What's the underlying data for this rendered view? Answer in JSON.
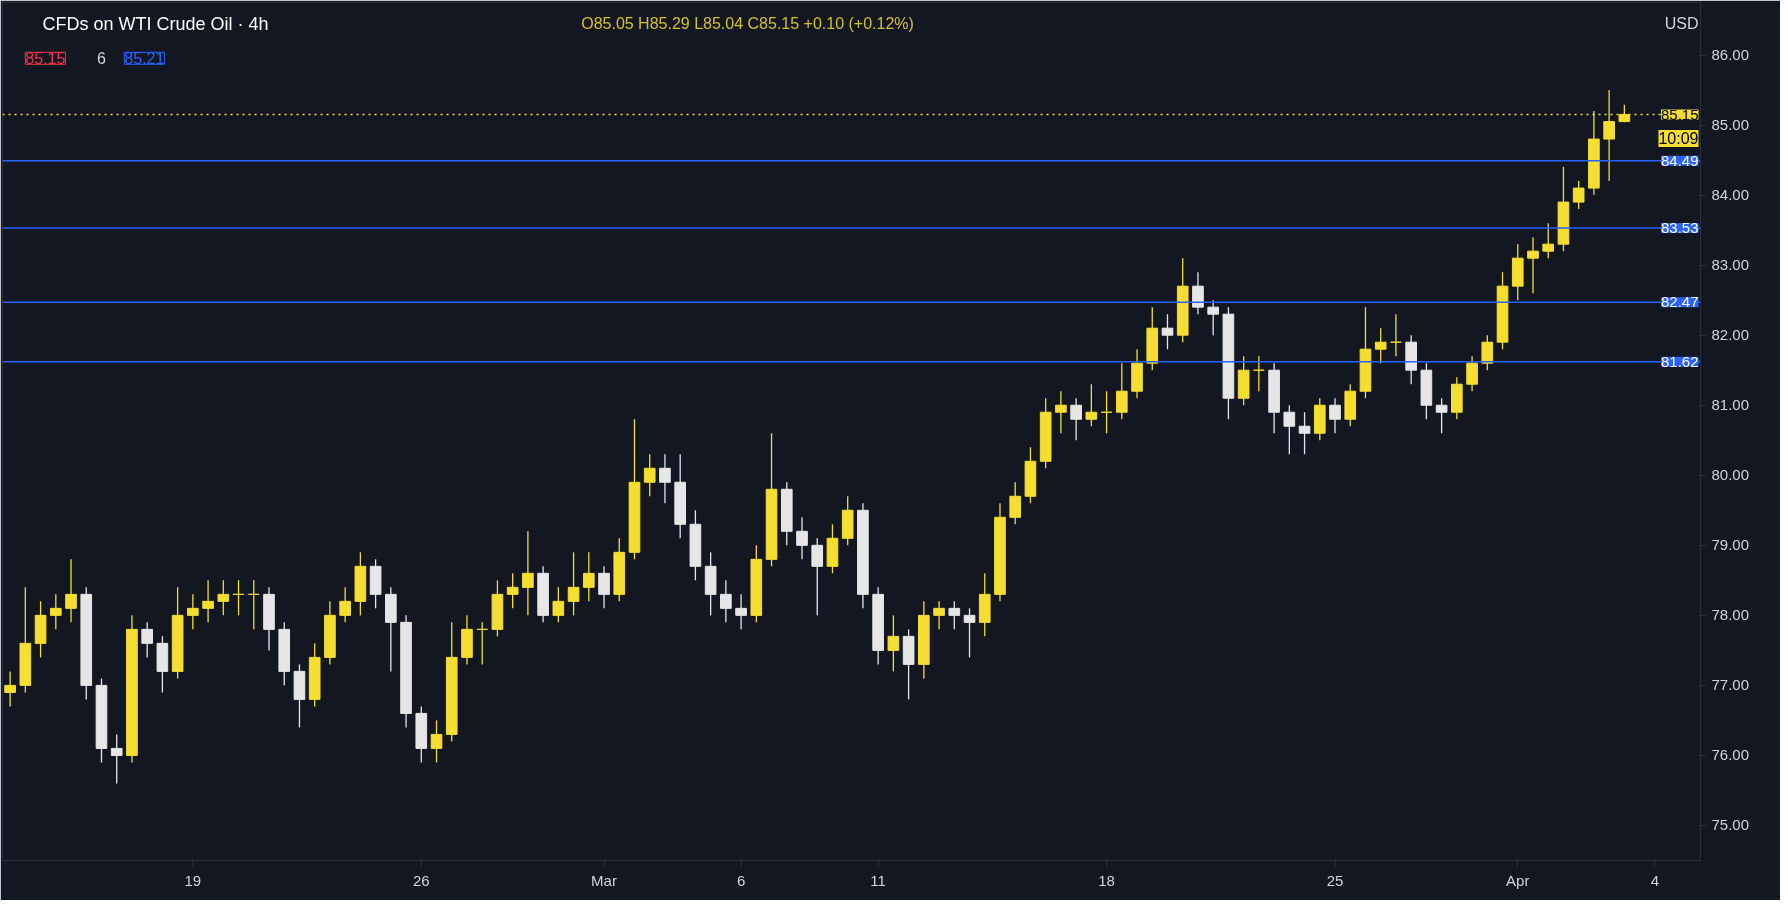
{
  "chart_data": {
    "type": "candlestick",
    "title": "CFDs on WTI Crude Oil · 4h",
    "annotations": [
      "O85.05 H85.29 L85.04 C85.15 +0.10 (+0.12%)",
      "85.15",
      "6",
      "85.21",
      "USD",
      "10:09"
    ],
    "categories": [
      null,
      null,
      null,
      null,
      null,
      null,
      null,
      null,
      null,
      null,
      null,
      null,
      "19",
      null,
      null,
      null,
      null,
      null,
      null,
      null,
      null,
      null,
      null,
      null,
      null,
      null,
      null,
      "26",
      null,
      null,
      null,
      null,
      null,
      null,
      null,
      null,
      null,
      null,
      null,
      "Mar",
      null,
      null,
      null,
      null,
      null,
      null,
      null,
      null,
      "6",
      null,
      null,
      null,
      null,
      null,
      null,
      null,
      null,
      "11",
      null,
      null,
      null,
      null,
      null,
      null,
      null,
      null,
      null,
      null,
      null,
      null,
      null,
      null,
      "18",
      null,
      null,
      null,
      null,
      null,
      null,
      null,
      null,
      null,
      null,
      null,
      null,
      null,
      null,
      "25",
      null,
      null,
      null,
      null,
      null,
      null,
      null,
      null,
      null,
      null,
      null,
      "Apr",
      null,
      null,
      null,
      null,
      null,
      null,
      null,
      null,
      "4"
    ],
    "ohlc": [
      [
        76.9,
        77.2,
        76.7,
        77.0
      ],
      [
        77.0,
        78.4,
        76.9,
        77.6
      ],
      [
        77.6,
        78.2,
        77.4,
        78.0
      ],
      [
        78.0,
        78.3,
        77.8,
        78.1
      ],
      [
        78.1,
        78.8,
        77.9,
        78.3
      ],
      [
        78.3,
        78.4,
        76.8,
        77.0
      ],
      [
        77.0,
        77.1,
        75.9,
        76.1
      ],
      [
        76.1,
        76.3,
        75.6,
        76.0
      ],
      [
        76.0,
        78.0,
        75.9,
        77.8
      ],
      [
        77.8,
        77.9,
        77.4,
        77.6
      ],
      [
        77.6,
        77.7,
        76.9,
        77.2
      ],
      [
        77.2,
        78.4,
        77.1,
        78.0
      ],
      [
        78.0,
        78.3,
        77.8,
        78.1
      ],
      [
        78.1,
        78.5,
        77.9,
        78.2
      ],
      [
        78.2,
        78.5,
        78.0,
        78.3
      ],
      [
        78.3,
        78.5,
        78.0,
        78.3
      ],
      [
        78.3,
        78.5,
        77.8,
        78.3
      ],
      [
        78.3,
        78.4,
        77.5,
        77.8
      ],
      [
        77.8,
        77.9,
        77.0,
        77.2
      ],
      [
        77.2,
        77.3,
        76.4,
        76.8
      ],
      [
        76.8,
        77.6,
        76.7,
        77.4
      ],
      [
        77.4,
        78.2,
        77.3,
        78.0
      ],
      [
        78.0,
        78.4,
        77.9,
        78.2
      ],
      [
        78.2,
        78.9,
        78.0,
        78.7
      ],
      [
        78.7,
        78.8,
        78.1,
        78.3
      ],
      [
        78.3,
        78.4,
        77.2,
        77.9
      ],
      [
        77.9,
        78.0,
        76.4,
        76.6
      ],
      [
        76.6,
        76.7,
        75.9,
        76.1
      ],
      [
        76.1,
        76.5,
        75.9,
        76.3
      ],
      [
        76.3,
        77.9,
        76.2,
        77.4
      ],
      [
        77.4,
        78.0,
        77.3,
        77.8
      ],
      [
        77.8,
        77.9,
        77.3,
        77.8
      ],
      [
        77.8,
        78.5,
        77.7,
        78.3
      ],
      [
        78.3,
        78.6,
        78.1,
        78.4
      ],
      [
        78.4,
        79.2,
        78.0,
        78.6
      ],
      [
        78.6,
        78.7,
        77.9,
        78.0
      ],
      [
        78.0,
        78.4,
        77.9,
        78.2
      ],
      [
        78.2,
        78.9,
        78.0,
        78.4
      ],
      [
        78.4,
        78.9,
        78.2,
        78.6
      ],
      [
        78.6,
        78.7,
        78.1,
        78.3
      ],
      [
        78.3,
        79.1,
        78.2,
        78.9
      ],
      [
        78.9,
        80.8,
        78.8,
        79.9
      ],
      [
        79.9,
        80.3,
        79.7,
        80.1
      ],
      [
        80.1,
        80.3,
        79.6,
        79.9
      ],
      [
        79.9,
        80.3,
        79.1,
        79.3
      ],
      [
        79.3,
        79.5,
        78.5,
        78.7
      ],
      [
        78.7,
        78.9,
        78.0,
        78.3
      ],
      [
        78.3,
        78.5,
        77.9,
        78.1
      ],
      [
        78.1,
        78.3,
        77.8,
        78.0
      ],
      [
        78.0,
        79.0,
        77.9,
        78.8
      ],
      [
        78.8,
        80.6,
        78.7,
        79.8
      ],
      [
        79.8,
        79.9,
        79.0,
        79.2
      ],
      [
        79.2,
        79.4,
        78.8,
        79.0
      ],
      [
        79.0,
        79.1,
        78.0,
        78.7
      ],
      [
        78.7,
        79.3,
        78.6,
        79.1
      ],
      [
        79.1,
        79.7,
        79.0,
        79.5
      ],
      [
        79.5,
        79.6,
        78.1,
        78.3
      ],
      [
        78.3,
        78.4,
        77.3,
        77.5
      ],
      [
        77.5,
        78.0,
        77.2,
        77.7
      ],
      [
        77.7,
        77.8,
        76.8,
        77.3
      ],
      [
        77.3,
        78.2,
        77.1,
        78.0
      ],
      [
        78.0,
        78.2,
        77.8,
        78.1
      ],
      [
        78.1,
        78.2,
        77.8,
        78.0
      ],
      [
        78.0,
        78.1,
        77.4,
        77.9
      ],
      [
        77.9,
        78.6,
        77.7,
        78.3
      ],
      [
        78.3,
        79.6,
        78.2,
        79.4
      ],
      [
        79.4,
        79.9,
        79.3,
        79.7
      ],
      [
        79.7,
        80.4,
        79.6,
        80.2
      ],
      [
        80.2,
        81.1,
        80.1,
        80.9
      ],
      [
        80.9,
        81.2,
        80.6,
        81.0
      ],
      [
        81.0,
        81.1,
        80.5,
        80.8
      ],
      [
        80.8,
        81.3,
        80.7,
        80.9
      ],
      [
        80.9,
        81.2,
        80.6,
        80.9
      ],
      [
        80.9,
        81.6,
        80.8,
        81.2
      ],
      [
        81.2,
        81.8,
        81.1,
        81.6
      ],
      [
        81.6,
        82.4,
        81.5,
        82.1
      ],
      [
        82.1,
        82.3,
        81.8,
        82.0
      ],
      [
        82.0,
        83.1,
        81.9,
        82.7
      ],
      [
        82.7,
        82.9,
        82.3,
        82.4
      ],
      [
        82.4,
        82.5,
        82.0,
        82.3
      ],
      [
        82.3,
        82.4,
        80.8,
        81.1
      ],
      [
        81.1,
        81.7,
        81.0,
        81.5
      ],
      [
        81.5,
        81.7,
        81.2,
        81.5
      ],
      [
        81.5,
        81.6,
        80.6,
        80.9
      ],
      [
        80.9,
        81.0,
        80.3,
        80.7
      ],
      [
        80.7,
        80.9,
        80.3,
        80.6
      ],
      [
        80.6,
        81.1,
        80.5,
        81.0
      ],
      [
        81.0,
        81.1,
        80.6,
        80.8
      ],
      [
        80.8,
        81.3,
        80.7,
        81.2
      ],
      [
        81.2,
        82.4,
        81.1,
        81.8
      ],
      [
        81.8,
        82.1,
        81.6,
        81.9
      ],
      [
        81.9,
        82.3,
        81.7,
        81.9
      ],
      [
        81.9,
        82.0,
        81.3,
        81.5
      ],
      [
        81.5,
        81.6,
        80.8,
        81.0
      ],
      [
        81.0,
        81.1,
        80.6,
        80.9
      ],
      [
        80.9,
        81.4,
        80.8,
        81.3
      ],
      [
        81.3,
        81.7,
        81.2,
        81.6
      ],
      [
        81.6,
        82.0,
        81.5,
        81.9
      ],
      [
        81.9,
        82.9,
        81.8,
        82.7
      ],
      [
        82.7,
        83.3,
        82.5,
        83.1
      ],
      [
        83.1,
        83.4,
        82.6,
        83.2
      ],
      [
        83.2,
        83.6,
        83.1,
        83.3
      ],
      [
        83.3,
        84.4,
        83.2,
        83.9
      ],
      [
        83.9,
        84.2,
        83.8,
        84.1
      ],
      [
        84.1,
        85.2,
        84.0,
        84.8
      ],
      [
        84.8,
        85.5,
        84.2,
        85.05
      ],
      [
        85.05,
        85.29,
        85.04,
        85.15
      ],
      null,
      null
    ],
    "colors": [
      "#f5dd32",
      "#f5dd32",
      "#f5dd32",
      "#f5dd32",
      "#f5dd32",
      "#e6e6e6",
      "#e6e6e6",
      "#e6e6e6",
      "#f5dd32",
      "#e6e6e6",
      "#e6e6e6",
      "#f5dd32",
      "#f5dd32",
      "#f5dd32",
      "#f5dd32",
      "#f5dd32",
      "#f5dd32",
      "#e6e6e6",
      "#e6e6e6",
      "#e6e6e6",
      "#f5dd32",
      "#f5dd32",
      "#f5dd32",
      "#f5dd32",
      "#e6e6e6",
      "#e6e6e6",
      "#e6e6e6",
      "#e6e6e6",
      "#f5dd32",
      "#f5dd32",
      "#f5dd32",
      "#f5dd32",
      "#f5dd32",
      "#f5dd32",
      "#f5dd32",
      "#e6e6e6",
      "#f5dd32",
      "#f5dd32",
      "#f5dd32",
      "#e6e6e6",
      "#f5dd32",
      "#f5dd32",
      "#f5dd32",
      "#e6e6e6",
      "#e6e6e6",
      "#e6e6e6",
      "#e6e6e6",
      "#e6e6e6",
      "#e6e6e6",
      "#f5dd32",
      "#f5dd32",
      "#e6e6e6",
      "#e6e6e6",
      "#e6e6e6",
      "#f5dd32",
      "#f5dd32",
      "#e6e6e6",
      "#e6e6e6",
      "#f5dd32",
      "#e6e6e6",
      "#f5dd32",
      "#f5dd32",
      "#e6e6e6",
      "#e6e6e6",
      "#f5dd32",
      "#f5dd32",
      "#f5dd32",
      "#f5dd32",
      "#f5dd32",
      "#f5dd32",
      "#e6e6e6",
      "#f5dd32",
      "#f5dd32",
      "#f5dd32",
      "#f5dd32",
      "#f5dd32",
      "#e6e6e6",
      "#f5dd32",
      "#e6e6e6",
      "#e6e6e6",
      "#e6e6e6",
      "#f5dd32",
      "#f5dd32",
      "#e6e6e6",
      "#e6e6e6",
      "#e6e6e6",
      "#f5dd32",
      "#e6e6e6",
      "#f5dd32",
      "#f5dd32",
      "#f5dd32",
      "#f5dd32",
      "#e6e6e6",
      "#e6e6e6",
      "#e6e6e6",
      "#f5dd32",
      "#f5dd32",
      "#f5dd32",
      "#f5dd32",
      "#f5dd32",
      "#f5dd32",
      "#f5dd32",
      "#f5dd32",
      "#f5dd32",
      "#f5dd32",
      "#f5dd32",
      "#f5dd32",
      null,
      null
    ],
    "ylim": [
      74.5,
      86.75
    ],
    "yticks": [
      {
        "value": 75,
        "label": "75.00"
      },
      {
        "value": 76,
        "label": "76.00"
      },
      {
        "value": 77,
        "label": "77.00"
      },
      {
        "value": 78,
        "label": "78.00"
      },
      {
        "value": 79,
        "label": "79.00"
      },
      {
        "value": 80,
        "label": "80.00"
      },
      {
        "value": 81,
        "label": "81.00"
      },
      {
        "value": 82,
        "label": "82.00"
      },
      {
        "value": 83,
        "label": "83.00"
      },
      {
        "value": 84,
        "label": "84.00"
      },
      {
        "value": 85,
        "label": "85.00"
      },
      {
        "value": 86,
        "label": "86.00"
      }
    ],
    "ref_lines": [
      {
        "axis": "y",
        "value": 84.49,
        "label": "84.49",
        "color": "#2962ff",
        "line_style": "solid"
      },
      {
        "axis": "y",
        "value": 83.53,
        "label": "83.53",
        "color": "#2962ff",
        "line_style": "solid"
      },
      {
        "axis": "y",
        "value": 82.47,
        "label": "82.47",
        "color": "#2962ff",
        "line_style": "solid"
      },
      {
        "axis": "y",
        "value": 81.62,
        "label": "81.62",
        "color": "#2962ff",
        "line_style": "solid"
      },
      {
        "axis": "y",
        "value": 85.15,
        "label": "85.15",
        "color": "#f5dd32",
        "line_style": "dotted"
      }
    ]
  }
}
